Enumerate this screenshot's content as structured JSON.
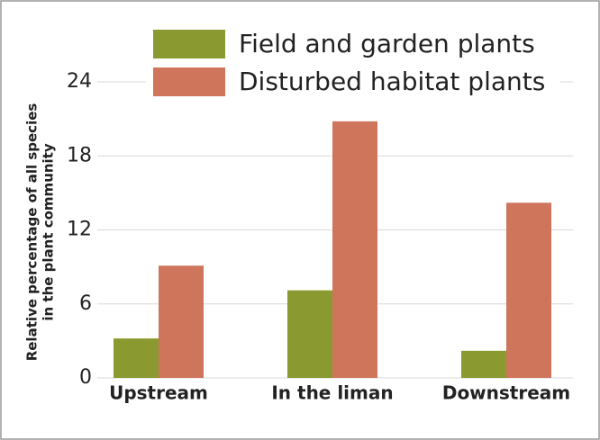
{
  "chart_data": {
    "type": "bar",
    "ylabel": [
      "Relative percentage of all species",
      "in the plant community"
    ],
    "categories": [
      "Upstream",
      "In the liman",
      "Downstream"
    ],
    "series": [
      {
        "name": "Field and garden plants",
        "color": "#8b9a30",
        "values": [
          3.2,
          7.1,
          2.2
        ]
      },
      {
        "name": "Disturbed habitat plants",
        "color": "#cf755c",
        "values": [
          9.1,
          20.8,
          14.2
        ]
      }
    ],
    "ylim": [
      0,
      24
    ],
    "yticks": [
      0,
      6,
      12,
      18,
      24
    ],
    "grid": true,
    "legend": "top"
  }
}
